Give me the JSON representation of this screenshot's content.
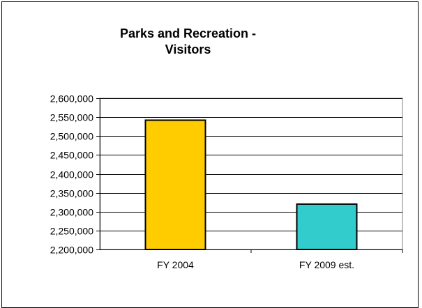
{
  "chart_data": {
    "type": "bar",
    "title_lines": [
      "Parks and Recreation -",
      "Visitors"
    ],
    "categories": [
      "FY 2004",
      "FY 2009 est."
    ],
    "values": [
      2542000,
      2320000
    ],
    "colors": [
      "#ffcc00",
      "#33cccc"
    ],
    "ylim": [
      2200000,
      2600000
    ],
    "ytick_step": 50000,
    "grid": true,
    "legend": "none"
  }
}
